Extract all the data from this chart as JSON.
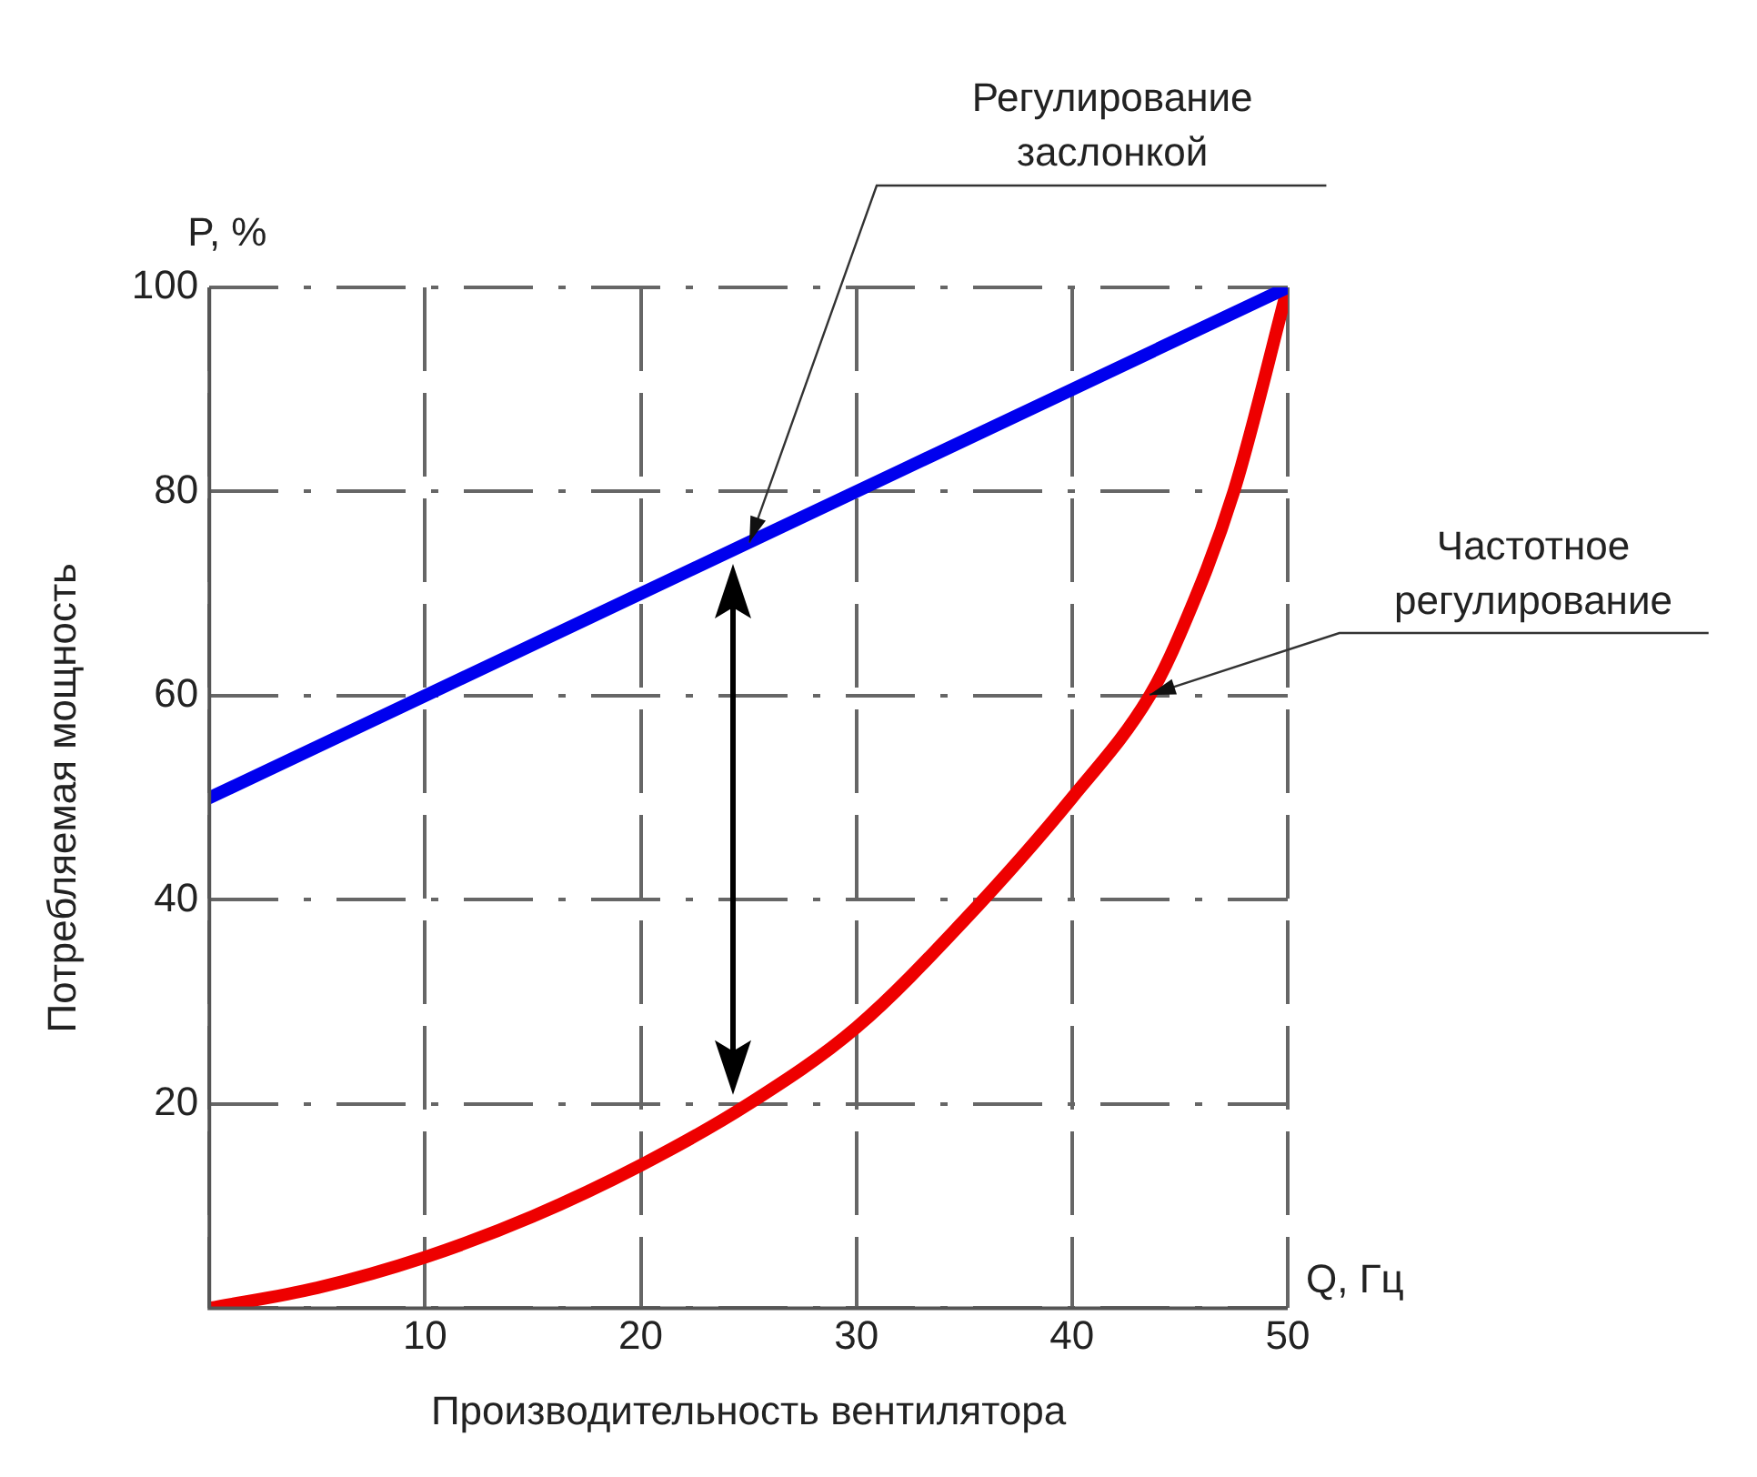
{
  "chart_data": {
    "type": "line",
    "xlabel": "Производительность вентилятора",
    "ylabel": "Потребляемая мощность",
    "x": [
      0,
      5,
      10,
      15,
      20,
      25,
      30,
      35,
      40,
      43.6,
      45,
      47.5,
      50
    ],
    "series": [
      {
        "color": "#0000ee",
        "x": [
          0,
          50
        ],
        "values": [
          50,
          100
        ]
      },
      {
        "color": "#ee0000",
        "values": [
          0,
          2,
          5,
          9,
          14,
          20,
          27.5,
          38,
          50,
          60,
          66,
          80,
          100
        ]
      }
    ],
    "xlim": [
      0,
      50
    ],
    "ylim": [
      0,
      100
    ],
    "xticks": [
      {
        "value": 0,
        "label": null
      },
      10,
      20,
      30,
      40,
      50
    ],
    "yticks": [
      {
        "value": 0,
        "label": null
      },
      20,
      40,
      60,
      80,
      100
    ],
    "annotations": [
      "P, %",
      "Q, Гц",
      {
        "text": "Регулирование заслонкой",
        "x": 25,
        "y": 75
      },
      {
        "text": "Частотное регулирование",
        "x": 43.6,
        "y": 60
      }
    ],
    "grid": true,
    "legend": false,
    "marker": "none",
    "line_style": "solid"
  }
}
